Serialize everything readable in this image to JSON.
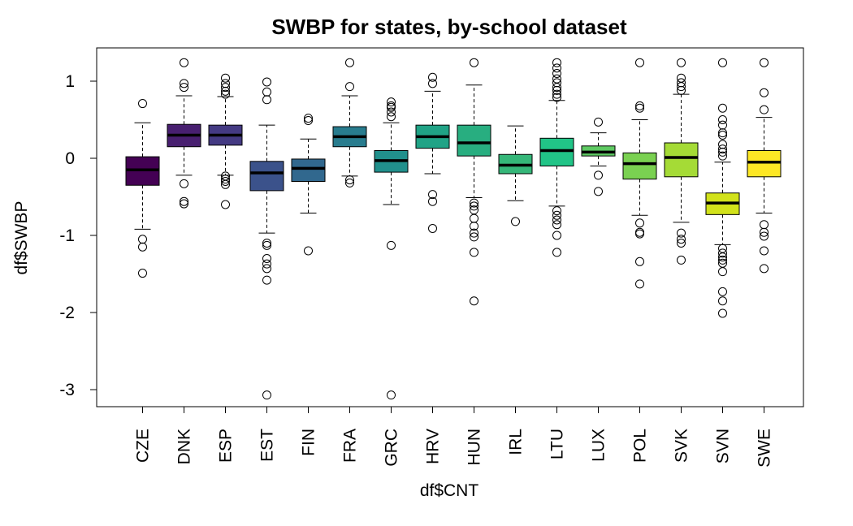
{
  "chart_data": {
    "type": "boxplot",
    "title": "SWBP for states, by-school dataset",
    "xlabel": "df$CNT",
    "ylabel": "df$SWBP",
    "ylim": [
      -3.2,
      1.4
    ],
    "y_ticks": [
      1,
      0,
      -1,
      -2,
      -3
    ],
    "y_tick_labels": [
      "1",
      "0",
      "-1",
      "-2",
      "-3"
    ],
    "categories": [
      "CZE",
      "DNK",
      "ESP",
      "EST",
      "FIN",
      "FRA",
      "GRC",
      "HRV",
      "HUN",
      "IRL",
      "LTU",
      "LUX",
      "POL",
      "SVK",
      "SVN",
      "SWE"
    ],
    "colors": [
      "#440154",
      "#481F70",
      "#443A83",
      "#3B528B",
      "#31688E",
      "#287C8E",
      "#21908C",
      "#20A386",
      "#28AE80",
      "#35B779",
      "#21C487",
      "#5EC962",
      "#7AD151",
      "#A5DB36",
      "#D2E21B",
      "#FDE725"
    ],
    "boxes": [
      {
        "name": "CZE",
        "whisker_low": -0.92,
        "q1": -0.35,
        "median": -0.15,
        "q3": 0.02,
        "whisker_high": 0.46,
        "outliers": [
          0.71,
          -1.05,
          -1.15,
          -1.49
        ]
      },
      {
        "name": "DNK",
        "whisker_low": -0.22,
        "q1": 0.15,
        "median": 0.3,
        "q3": 0.44,
        "whisker_high": 0.81,
        "outliers": [
          1.24,
          0.97,
          0.92,
          -0.33,
          -0.56,
          -0.59
        ]
      },
      {
        "name": "ESP",
        "whisker_low": -0.22,
        "q1": 0.17,
        "median": 0.3,
        "q3": 0.43,
        "whisker_high": 0.8,
        "outliers": [
          1.04,
          0.97,
          0.92,
          0.87,
          0.83,
          -0.23,
          -0.27,
          -0.3,
          -0.34,
          -0.6
        ]
      },
      {
        "name": "EST",
        "whisker_low": -0.97,
        "q1": -0.42,
        "median": -0.19,
        "q3": -0.04,
        "whisker_high": 0.43,
        "outliers": [
          0.99,
          0.86,
          0.76,
          -1.1,
          -1.13,
          -1.3,
          -1.37,
          -1.43,
          -1.58,
          -3.07
        ]
      },
      {
        "name": "FIN",
        "whisker_low": -0.71,
        "q1": -0.3,
        "median": -0.13,
        "q3": -0.01,
        "whisker_high": 0.25,
        "outliers": [
          0.52,
          0.49,
          -1.2
        ]
      },
      {
        "name": "FRA",
        "whisker_low": -0.23,
        "q1": 0.15,
        "median": 0.28,
        "q3": 0.41,
        "whisker_high": 0.81,
        "outliers": [
          1.24,
          0.93,
          -0.28,
          -0.32
        ]
      },
      {
        "name": "GRC",
        "whisker_low": -0.6,
        "q1": -0.18,
        "median": -0.03,
        "q3": 0.1,
        "whisker_high": 0.46,
        "outliers": [
          0.73,
          0.68,
          0.66,
          0.6,
          0.54,
          -1.13,
          -3.07
        ]
      },
      {
        "name": "HRV",
        "whisker_low": -0.2,
        "q1": 0.13,
        "median": 0.28,
        "q3": 0.43,
        "whisker_high": 0.87,
        "outliers": [
          1.05,
          0.97,
          -0.47,
          -0.56,
          -0.91
        ]
      },
      {
        "name": "HUN",
        "whisker_low": -0.51,
        "q1": 0.03,
        "median": 0.2,
        "q3": 0.43,
        "whisker_high": 0.95,
        "outliers": [
          1.24,
          -0.58,
          -0.62,
          -0.67,
          -0.78,
          -0.88,
          -0.97,
          -1.02,
          -1.22,
          -1.85
        ]
      },
      {
        "name": "IRL",
        "whisker_low": -0.55,
        "q1": -0.2,
        "median": -0.09,
        "q3": 0.05,
        "whisker_high": 0.42,
        "outliers": [
          -0.82
        ]
      },
      {
        "name": "LTU",
        "whisker_low": -0.62,
        "q1": -0.1,
        "median": 0.1,
        "q3": 0.26,
        "whisker_high": 0.75,
        "outliers": [
          1.24,
          1.17,
          1.1,
          1.03,
          0.98,
          0.92,
          0.88,
          0.83,
          0.79,
          -0.68,
          -0.74,
          -0.8,
          -0.86,
          -1.0,
          -1.22
        ]
      },
      {
        "name": "LUX",
        "whisker_low": -0.1,
        "q1": 0.03,
        "median": 0.08,
        "q3": 0.16,
        "whisker_high": 0.33,
        "outliers": [
          0.47,
          -0.22,
          -0.43
        ]
      },
      {
        "name": "POL",
        "whisker_low": -0.74,
        "q1": -0.27,
        "median": -0.07,
        "q3": 0.07,
        "whisker_high": 0.5,
        "outliers": [
          1.24,
          0.68,
          0.65,
          -0.84,
          -0.96,
          -0.98,
          -1.34,
          -1.63
        ]
      },
      {
        "name": "SVK",
        "whisker_low": -0.83,
        "q1": -0.24,
        "median": 0.01,
        "q3": 0.2,
        "whisker_high": 0.83,
        "outliers": [
          1.24,
          1.04,
          0.98,
          0.93,
          0.88,
          -0.97,
          -1.05,
          -1.1,
          -1.32
        ]
      },
      {
        "name": "SVN",
        "whisker_low": -1.12,
        "q1": -0.73,
        "median": -0.58,
        "q3": -0.45,
        "whisker_high": -0.05,
        "outliers": [
          1.24,
          0.65,
          0.5,
          0.43,
          0.33,
          0.3,
          0.18,
          0.12,
          0.08,
          0.03,
          -1.17,
          -1.23,
          -1.28,
          -1.32,
          -1.36,
          -1.47,
          -1.73,
          -1.85,
          -2.01
        ]
      },
      {
        "name": "SWE",
        "whisker_low": -0.71,
        "q1": -0.24,
        "median": -0.05,
        "q3": 0.1,
        "whisker_high": 0.53,
        "outliers": [
          1.24,
          0.85,
          0.63,
          -0.86,
          -0.96,
          -1.01,
          -1.2,
          -1.43
        ]
      }
    ]
  }
}
